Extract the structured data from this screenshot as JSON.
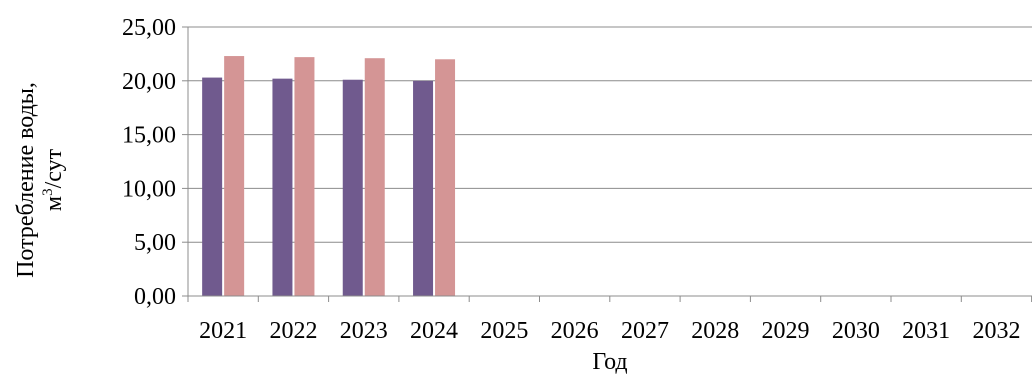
{
  "chart_data": {
    "type": "bar",
    "xlabel": "Год",
    "ylabel_line1": "Потребление воды,",
    "ylabel_line2_prefix": "м",
    "ylabel_line2_sup": "3",
    "ylabel_line2_suffix": "/сут",
    "categories": [
      "2021",
      "2022",
      "2023",
      "2024",
      "2025",
      "2026",
      "2027",
      "2028",
      "2029",
      "2030",
      "2031",
      "2032"
    ],
    "series": [
      {
        "values": [
          20.3,
          20.2,
          20.1,
          20.0,
          null,
          null,
          null,
          null,
          null,
          null,
          null,
          null
        ]
      },
      {
        "values": [
          22.3,
          22.2,
          22.1,
          22.0,
          null,
          null,
          null,
          null,
          null,
          null,
          null,
          null
        ]
      }
    ],
    "colors": [
      "#705a8e",
      "#d49595"
    ],
    "ylim": [
      0,
      25
    ],
    "yticks": [
      "0,00",
      "5,00",
      "10,00",
      "15,00",
      "20,00",
      "25,00"
    ],
    "grid": true,
    "legend": false
  }
}
